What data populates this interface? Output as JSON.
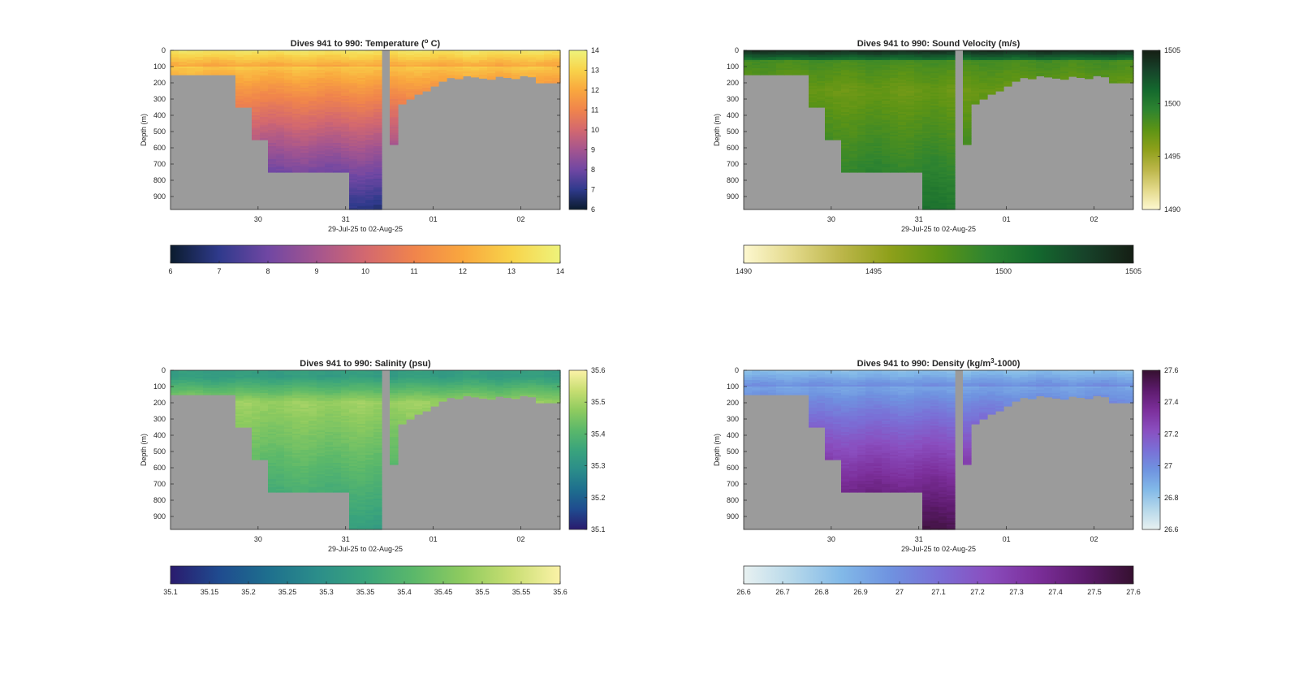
{
  "figure": {
    "background": "#ffffff",
    "mask_color": "#9b9b9b"
  },
  "chart_data": [
    {
      "type": "heatmap",
      "title": "Dives 941 to 990: Temperature (° C)",
      "title_parts": [
        "Dives 941 to 990: Temperature (",
        "o",
        " C)"
      ],
      "xlabel": "29-Jul-25 to 02-Aug-25",
      "ylabel": "Depth (m)",
      "xlim_days": [
        29.0,
        33.45
      ],
      "xticks": [
        {
          "day": 30,
          "label": "30"
        },
        {
          "day": 31,
          "label": "31"
        },
        {
          "day": 32,
          "label": "01"
        },
        {
          "day": 33,
          "label": "02"
        }
      ],
      "ylim": [
        0,
        980
      ],
      "yticks": [
        0,
        100,
        200,
        300,
        400,
        500,
        600,
        700,
        800,
        900
      ],
      "colorbar_side": {
        "range": [
          6,
          14
        ],
        "ticks": [
          "6",
          "7",
          "8",
          "9",
          "10",
          "11",
          "12",
          "13",
          "14"
        ]
      },
      "colorbar_bottom": {
        "range": [
          6,
          14
        ],
        "ticks": [
          "6",
          "7",
          "8",
          "9",
          "10",
          "11",
          "12",
          "13",
          "14"
        ]
      },
      "colormap": [
        "#0b1c2e",
        "#2f3a8c",
        "#7047a3",
        "#a4558f",
        "#d3686f",
        "#f0844c",
        "#f9a73e",
        "#f8d34a",
        "#eef37b"
      ],
      "surface_value": 13.6,
      "deep_value": 6.8,
      "gradient": "monotonic"
    },
    {
      "type": "heatmap",
      "title": "Dives 941 to 990: Sound Velocity (m/s)",
      "xlabel": "29-Jul-25 to 02-Aug-25",
      "ylabel": "Depth (m)",
      "xlim_days": [
        29.0,
        33.45
      ],
      "xticks": [
        {
          "day": 30,
          "label": "30"
        },
        {
          "day": 31,
          "label": "31"
        },
        {
          "day": 32,
          "label": "01"
        },
        {
          "day": 33,
          "label": "02"
        }
      ],
      "ylim": [
        0,
        980
      ],
      "yticks": [
        0,
        100,
        200,
        300,
        400,
        500,
        600,
        700,
        800,
        900
      ],
      "colorbar_side": {
        "range": [
          1490,
          1505
        ],
        "ticks": [
          "1490",
          "1495",
          "1500",
          "1505"
        ]
      },
      "colorbar_bottom": {
        "range": [
          1490,
          1505
        ],
        "ticks": [
          "1490",
          "1495",
          "1500",
          "1505"
        ]
      },
      "colormap": [
        "#fdf8d0",
        "#e3d98a",
        "#bcb64a",
        "#8ea01a",
        "#5d9415",
        "#2e8430",
        "#14692e",
        "#17432a",
        "#151e14"
      ],
      "surface_value": 1504.5,
      "mid_value": 1497.0,
      "deep_value": 1500.5,
      "gradient": "sound"
    },
    {
      "type": "heatmap",
      "title": "Dives 941 to 990: Salinity (psu)",
      "xlabel": "29-Jul-25 to 02-Aug-25",
      "ylabel": "Depth (m)",
      "xlim_days": [
        29.0,
        33.45
      ],
      "xticks": [
        {
          "day": 30,
          "label": "30"
        },
        {
          "day": 31,
          "label": "31"
        },
        {
          "day": 32,
          "label": "01"
        },
        {
          "day": 33,
          "label": "02"
        }
      ],
      "ylim": [
        0,
        980
      ],
      "yticks": [
        0,
        100,
        200,
        300,
        400,
        500,
        600,
        700,
        800,
        900
      ],
      "colorbar_side": {
        "range": [
          35.1,
          35.6
        ],
        "ticks": [
          "35.1",
          "35.2",
          "35.3",
          "35.4",
          "35.5",
          "35.6"
        ]
      },
      "colorbar_bottom": {
        "range": [
          35.1,
          35.6
        ],
        "ticks": [
          "35.1",
          "35.15",
          "35.2",
          "35.25",
          "35.3",
          "35.35",
          "35.4",
          "35.45",
          "35.5",
          "35.55",
          "35.6"
        ]
      },
      "colormap": [
        "#2a1b6e",
        "#1f4b8f",
        "#1e6f8e",
        "#2b8d8a",
        "#3aa47c",
        "#5bb86a",
        "#8fcb5f",
        "#c8de72",
        "#fbf2a7"
      ],
      "surface_value": 35.33,
      "mid_value": 35.49,
      "deep_value": 35.33,
      "gradient": "salinity"
    },
    {
      "type": "heatmap",
      "title": "Dives 941 to 990: Density (kg/m³-1000)",
      "title_parts": [
        "Dives 941 to 990: Density (kg/m",
        "3",
        "-1000)"
      ],
      "xlabel": "29-Jul-25 to 02-Aug-25",
      "ylabel": "Depth (m)",
      "xlim_days": [
        29.0,
        33.45
      ],
      "xticks": [
        {
          "day": 30,
          "label": "30"
        },
        {
          "day": 31,
          "label": "31"
        },
        {
          "day": 32,
          "label": "01"
        },
        {
          "day": 33,
          "label": "02"
        }
      ],
      "ylim": [
        0,
        980
      ],
      "yticks": [
        0,
        100,
        200,
        300,
        400,
        500,
        600,
        700,
        800,
        900
      ],
      "colorbar_side": {
        "range": [
          26.6,
          27.6
        ],
        "ticks": [
          "26.6",
          "26.8",
          "27",
          "27.2",
          "27.4",
          "27.6"
        ]
      },
      "colorbar_bottom": {
        "range": [
          26.6,
          27.6
        ],
        "ticks": [
          "26.6",
          "26.7",
          "26.8",
          "26.9",
          "27",
          "27.1",
          "27.2",
          "27.3",
          "27.4",
          "27.5",
          "27.6"
        ]
      },
      "colormap": [
        "#e8f1f1",
        "#b6d8ea",
        "#82b9e8",
        "#6f93e0",
        "#7a6fd6",
        "#8a4ebf",
        "#7c2f9b",
        "#5d1b6d",
        "#35102f"
      ],
      "surface_value": 26.82,
      "deep_value": 27.55,
      "gradient": "monotonic"
    }
  ]
}
